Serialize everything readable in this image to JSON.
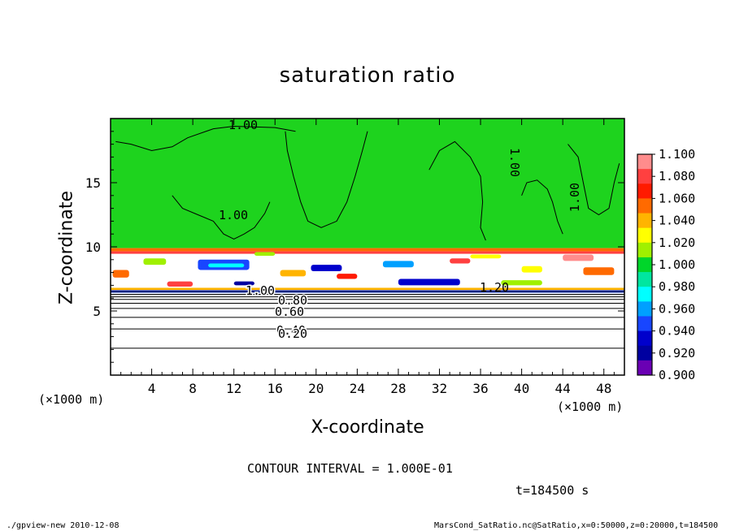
{
  "chart_data": {
    "type": "heatmap",
    "title": "saturation ratio",
    "xlabel": "X-coordinate",
    "ylabel": "Z-coordinate",
    "x_unit": "(×1000 m)",
    "y_unit": "(×1000 m)",
    "xlim": [
      0,
      50
    ],
    "ylim": [
      0,
      20
    ],
    "x_ticks": [
      4,
      8,
      12,
      16,
      20,
      24,
      28,
      32,
      36,
      40,
      44,
      48
    ],
    "y_ticks": [
      5,
      10,
      15
    ],
    "contour_interval": "CONTOUR INTERVAL = 1.000E-01",
    "time_label": "t=184500 s",
    "colorbar": {
      "levels": [
        "1.100",
        "1.080",
        "1.060",
        "1.040",
        "1.020",
        "1.000",
        "0.980",
        "0.960",
        "0.940",
        "0.920",
        "0.900"
      ],
      "colors": [
        "#ff8c8c",
        "#ff4040",
        "#ff1a00",
        "#ff6a00",
        "#ffb400",
        "#ffff00",
        "#a0f000",
        "#00d62a",
        "#00e6a0",
        "#00ffff",
        "#00a0ff",
        "#1846ff",
        "#0000cc",
        "#0000a0",
        "#6a00b4"
      ]
    },
    "regions": {
      "upper_value": 1.0,
      "upper_color": "#1ed31e",
      "lower_value": "below 0.90"
    },
    "contour_labels": [
      "1.00",
      "1.00",
      "1.00",
      "1.00",
      "1.20",
      "1.00",
      "0.80",
      "0.60",
      "0.40",
      "0.20"
    ],
    "lower_contours_z": [
      2.1,
      3.6,
      4.5,
      5.2,
      5.6,
      5.9,
      6.1,
      6.3,
      6.5
    ]
  },
  "footer": {
    "left": "./gpview-new  2010-12-08",
    "right": "MarsCond_SatRatio.nc@SatRatio,x=0:50000,z=0:20000,t=184500"
  }
}
